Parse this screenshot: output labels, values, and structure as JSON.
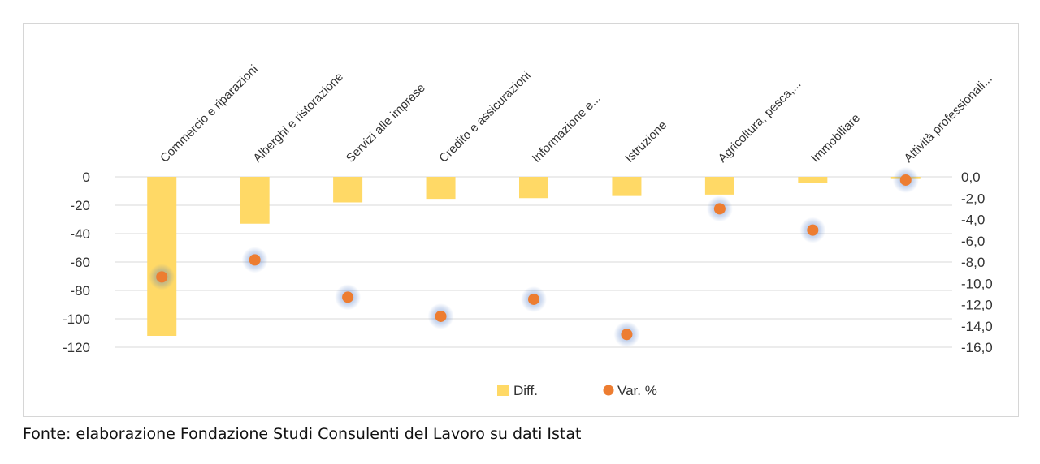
{
  "chart_data": {
    "type": "bar",
    "categories": [
      "Commercio e riparazioni",
      "Alberghi e ristorazione",
      "Servizi alle imprese",
      "Credito e assicurazioni",
      "Informazione e...",
      "Istruzione",
      "Agricoltura, pesca,...",
      "Immobiliare",
      "Attività professionali..."
    ],
    "series": [
      {
        "name": "Diff.",
        "type": "bar",
        "axis": "left",
        "color": "#FFD966",
        "values": [
          -112,
          -33,
          -18,
          -15.5,
          -15,
          -13.5,
          -12.5,
          -4,
          -1.5
        ]
      },
      {
        "name": "Var. %",
        "type": "scatter",
        "axis": "right",
        "color": "#ED7D31",
        "halo_color": "#4472C4",
        "values": [
          -9.4,
          -7.8,
          -11.3,
          -13.1,
          -11.5,
          -14.8,
          -3.0,
          -5.0,
          -0.3
        ]
      }
    ],
    "left_axis": {
      "ylim": [
        -120,
        0
      ],
      "ticks": [
        "0",
        "-20",
        "-40",
        "-60",
        "-80",
        "-100",
        "-120"
      ],
      "tick_values": [
        0,
        -20,
        -40,
        -60,
        -80,
        -100,
        -120
      ]
    },
    "right_axis": {
      "ylim": [
        -16,
        0
      ],
      "ticks": [
        "0,0",
        "-2,0",
        "-4,0",
        "-6,0",
        "-8,0",
        "-10,0",
        "-12,0",
        "-14,0",
        "-16,0"
      ],
      "tick_values": [
        0,
        -2,
        -4,
        -6,
        -8,
        -10,
        -12,
        -14,
        -16
      ]
    },
    "grid": true,
    "legend_position": "bottom",
    "title": "",
    "xlabel": "",
    "ylabel": ""
  },
  "source_note": "Fonte: elaborazione Fondazione Studi Consulenti del Lavoro su dati Istat",
  "colors": {
    "grid": "#d9d9d9",
    "frame": "#d6d6d6",
    "text": "#333333"
  }
}
